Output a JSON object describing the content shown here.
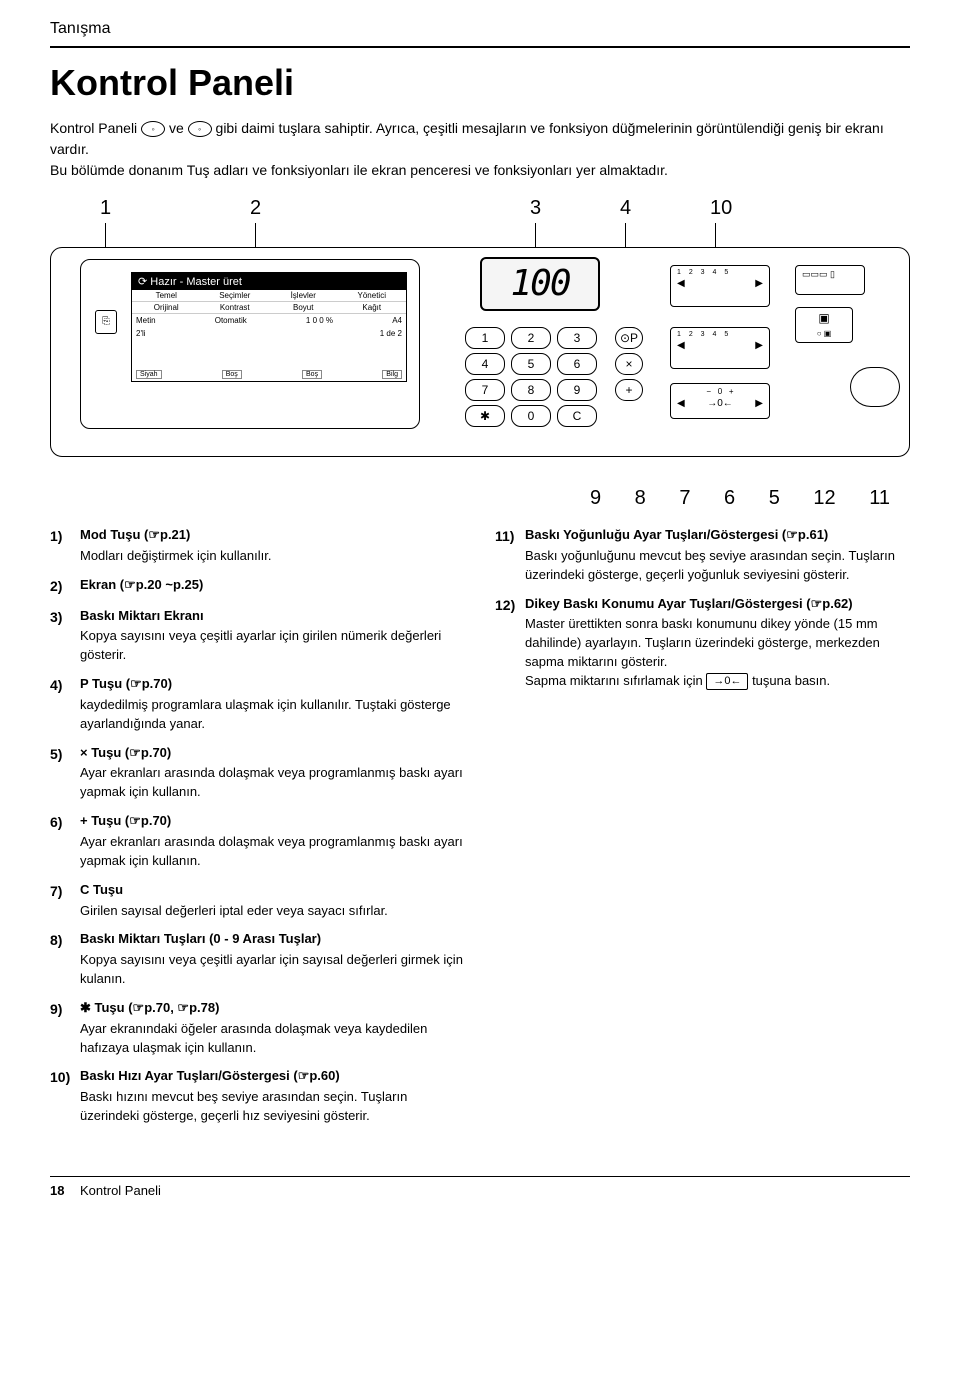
{
  "header_section": "Tanışma",
  "title": "Kontrol Paneli",
  "intro_before": "Kontrol Paneli ",
  "intro_mid": " ve ",
  "intro_after": " gibi daimi tuşlara sahiptir. Ayrıca, çeşitli mesajların ve fonksiyon düğmelerinin görüntülendiği geniş bir ekranı vardır.",
  "intro_line2": "Bu bölümde donanım Tuş adları ve fonksiyonları ile ekran penceresi ve fonksiyonları yer almaktadır.",
  "top_callouts": [
    "1",
    "2",
    "3",
    "4",
    "10"
  ],
  "bottom_callouts": [
    "9",
    "8",
    "7",
    "6",
    "5",
    "12",
    "11"
  ],
  "panel": {
    "lcd_title": "⟳ Hazır - Master üret",
    "tabs": [
      "Temel",
      "Seçimler",
      "İşlevler",
      "Yönetici"
    ],
    "row2": [
      "Orijinal",
      "Kontrast",
      "Boyut",
      "Kağıt"
    ],
    "body_left": "Metin",
    "body_mid": "Otomatik",
    "body_pct": "1 0 0 %",
    "body_right": "A4",
    "body_bottom_l": "2'li",
    "body_bottom_r": "1 de 2",
    "footer_items": [
      "Siyah",
      "Boş",
      "Boş",
      "Bilg"
    ],
    "seg": "100",
    "keypad": [
      "1",
      "2",
      "3",
      "4",
      "5",
      "6",
      "7",
      "8",
      "9",
      "✱",
      "0",
      "C"
    ],
    "side": [
      "⊙P",
      "×",
      "+"
    ],
    "dots_label": "1 2 3 4 5",
    "pos_reset": "→0←"
  },
  "left_items": [
    {
      "n": "1)",
      "t": "Mod Tuşu (☞p.21)",
      "d": "Modları değiştirmek için kullanılır."
    },
    {
      "n": "2)",
      "t": "Ekran (☞p.20 ~p.25)",
      "d": ""
    },
    {
      "n": "3)",
      "t": "Baskı Miktarı Ekranı",
      "d": "Kopya sayısını veya çeşitli ayarlar için girilen nümerik değerleri gösterir."
    },
    {
      "n": "4)",
      "t": "P Tuşu (☞p.70)",
      "d": "kaydedilmiş programlara ulaşmak için kullanılır. Tuştaki gösterge ayarlandığında yanar."
    },
    {
      "n": "5)",
      "t": "× Tuşu (☞p.70)",
      "d": "Ayar ekranları arasında dolaşmak veya programlanmış baskı ayarı yapmak için kullanın."
    },
    {
      "n": "6)",
      "t": "+ Tuşu (☞p.70)",
      "d": "Ayar ekranları arasında dolaşmak veya programlanmış baskı ayarı yapmak için kullanın."
    },
    {
      "n": "7)",
      "t": "C Tuşu",
      "d": "Girilen sayısal değerleri iptal eder veya sayacı sıfırlar."
    },
    {
      "n": "8)",
      "t": "Baskı Miktarı Tuşları (0 - 9 Arası Tuşlar)",
      "d": "Kopya sayısını veya çeşitli ayarlar için sayısal değerleri girmek için kulanın."
    },
    {
      "n": "9)",
      "t": "✱ Tuşu (☞p.70, ☞p.78)",
      "d": "Ayar ekranındaki öğeler arasında dolaşmak veya kaydedilen hafızaya ulaşmak için kullanın."
    },
    {
      "n": "10)",
      "t": "Baskı Hızı Ayar Tuşları/Göstergesi (☞p.60)",
      "d": "Baskı hızını mevcut beş seviye arasından seçin. Tuşların üzerindeki gösterge, geçerli hız seviyesini gösterir."
    }
  ],
  "right_items": [
    {
      "n": "11)",
      "t": "Baskı Yoğunluğu Ayar Tuşları/Göstergesi (☞p.61)",
      "d": "Baskı yoğunluğunu mevcut beş seviye arasından seçin. Tuşların üzerindeki gösterge, geçerli yoğunluk seviyesini gösterir."
    },
    {
      "n": "12)",
      "t": "Dikey Baskı Konumu Ayar Tuşları/Göstergesi (☞p.62)",
      "d": "Master ürettikten sonra baskı konumunu dikey yönde (15 mm dahilinde) ayarlayın. Tuşların üzerindeki gösterge, merkezden sapma miktarını gösterir."
    }
  ],
  "right_item12_extra_before": "Sapma miktarını sıfırlamak için ",
  "right_item12_key": "→0←",
  "right_item12_extra_after": " tuşuna basın.",
  "footer_page": "18",
  "footer_text": "Kontrol Paneli"
}
